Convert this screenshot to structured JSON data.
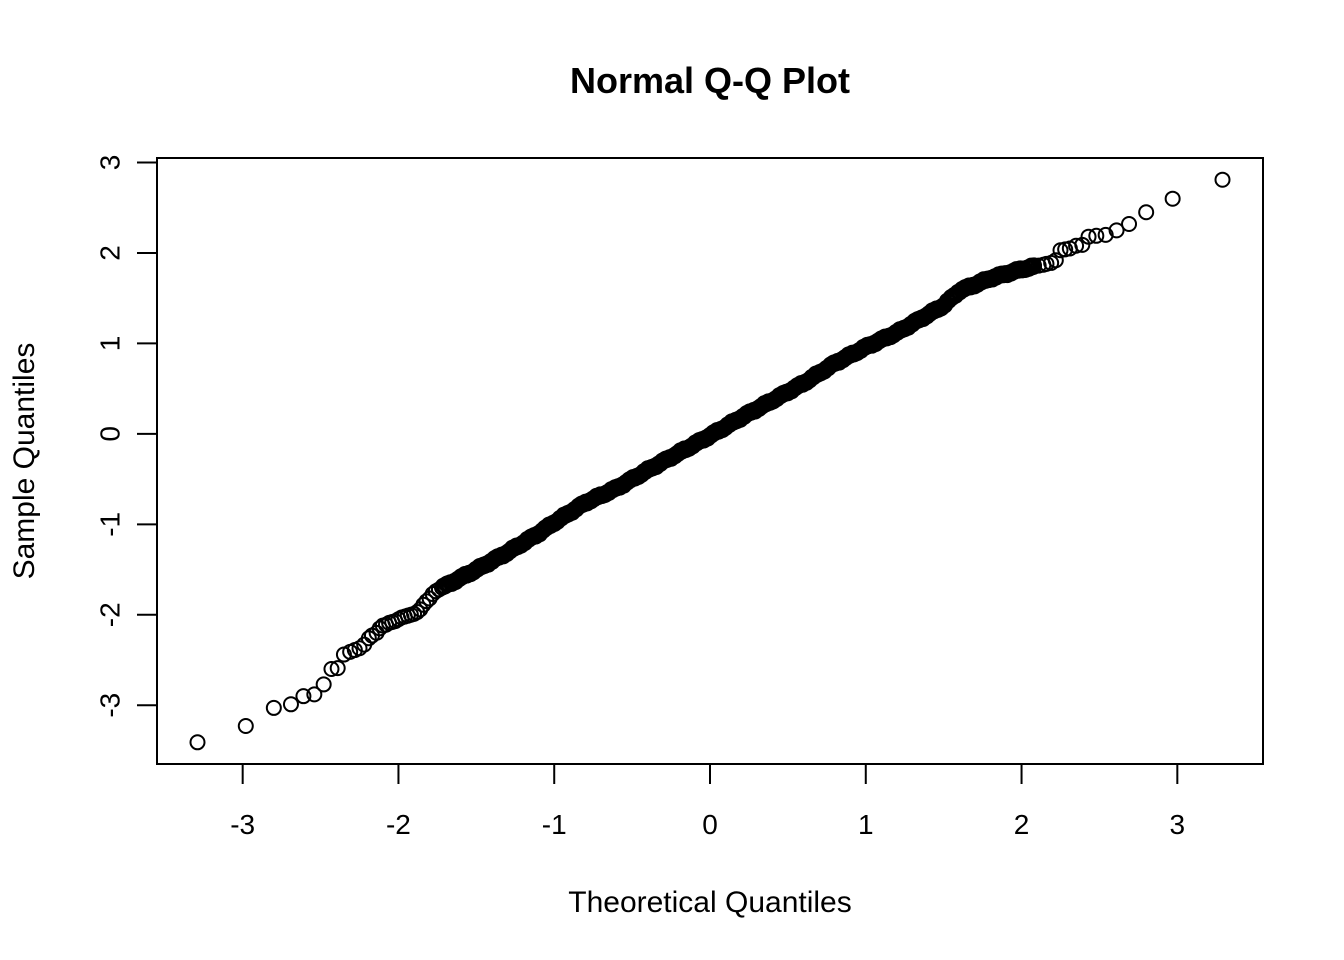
{
  "chart_data": {
    "type": "scatter",
    "title": "Normal Q-Q Plot",
    "xlabel": "Theoretical Quantiles",
    "ylabel": "Sample Quantiles",
    "xlim": [
      -3.55,
      3.55
    ],
    "ylim": [
      -3.65,
      3.05
    ],
    "xticks": [
      -3,
      -2,
      -1,
      0,
      1,
      2,
      3
    ],
    "yticks": [
      -3,
      -2,
      -1,
      0,
      1,
      2,
      3
    ],
    "tick_labels_x": [
      "-3",
      "-2",
      "-1",
      "0",
      "1",
      "2",
      "3"
    ],
    "tick_labels_y": [
      "-3",
      "-2",
      "-1",
      "0",
      "1",
      "2",
      "3"
    ],
    "grid": false,
    "marker": "open-circle",
    "point_color": "#000000",
    "sample_size": 1000,
    "series": [
      {
        "points": [
          [
            -3.29,
            -3.41
          ],
          [
            -2.98,
            -3.23
          ],
          [
            -2.8,
            -3.03
          ],
          [
            -2.69,
            -2.99
          ],
          [
            -2.61,
            -2.9
          ],
          [
            -2.54,
            -2.88
          ],
          [
            -2.48,
            -2.77
          ],
          [
            -2.43,
            -2.6
          ],
          [
            -2.39,
            -2.59
          ],
          [
            -2.35,
            -2.44
          ],
          [
            -2.31,
            -2.41
          ],
          [
            -2.28,
            -2.39
          ],
          [
            -2.25,
            -2.37
          ],
          [
            -2.22,
            -2.33
          ],
          [
            -2.19,
            -2.26
          ],
          [
            -2.17,
            -2.23
          ],
          [
            -2.14,
            -2.2
          ],
          [
            -2.12,
            -2.15
          ],
          [
            -2.1,
            -2.12
          ],
          [
            -2.08,
            -2.11
          ],
          [
            -2.06,
            -2.09
          ],
          [
            -2.04,
            -2.08
          ],
          [
            -2.02,
            -2.07
          ],
          [
            -2.0,
            -2.05
          ],
          [
            -1.98,
            -2.03
          ],
          [
            -1.96,
            -2.02
          ],
          [
            -1.94,
            -2.01
          ],
          [
            -1.92,
            -2.0
          ],
          [
            -1.9,
            -1.99
          ],
          [
            -1.88,
            -1.97
          ],
          [
            -1.86,
            -1.94
          ],
          [
            -1.84,
            -1.89
          ],
          [
            -1.82,
            -1.85
          ],
          [
            -1.8,
            -1.82
          ],
          [
            -1.78,
            -1.77
          ],
          [
            -1.76,
            -1.74
          ],
          [
            -1.74,
            -1.72
          ],
          [
            -1.72,
            -1.7
          ],
          [
            2.08,
            1.85
          ],
          [
            2.11,
            1.86
          ],
          [
            2.14,
            1.87
          ],
          [
            2.16,
            1.88
          ],
          [
            2.19,
            1.89
          ],
          [
            2.22,
            1.92
          ],
          [
            2.25,
            2.03
          ],
          [
            2.28,
            2.04
          ],
          [
            2.31,
            2.05
          ],
          [
            2.35,
            2.08
          ],
          [
            2.39,
            2.09
          ],
          [
            2.43,
            2.18
          ],
          [
            2.48,
            2.19
          ],
          [
            2.54,
            2.2
          ],
          [
            2.61,
            2.25
          ],
          [
            2.69,
            2.32
          ],
          [
            2.8,
            2.45
          ],
          [
            2.97,
            2.6
          ],
          [
            3.29,
            2.81
          ]
        ],
        "bulk": [
          [
            -1.72,
            -1.7
          ],
          [
            -1.5,
            -1.5
          ],
          [
            -1.3,
            -1.31
          ],
          [
            -1.1,
            -1.1
          ],
          [
            -1.0,
            -0.98
          ],
          [
            -0.8,
            -0.76
          ],
          [
            -0.6,
            -0.6
          ],
          [
            -0.4,
            -0.4
          ],
          [
            -0.2,
            -0.21
          ],
          [
            0.0,
            -0.02
          ],
          [
            0.2,
            0.18
          ],
          [
            0.4,
            0.37
          ],
          [
            0.6,
            0.56
          ],
          [
            0.8,
            0.78
          ],
          [
            1.0,
            0.96
          ],
          [
            1.2,
            1.12
          ],
          [
            1.4,
            1.32
          ],
          [
            1.5,
            1.42
          ],
          [
            1.6,
            1.58
          ],
          [
            1.8,
            1.72
          ],
          [
            2.0,
            1.82
          ],
          [
            2.08,
            1.85
          ]
        ]
      }
    ]
  }
}
